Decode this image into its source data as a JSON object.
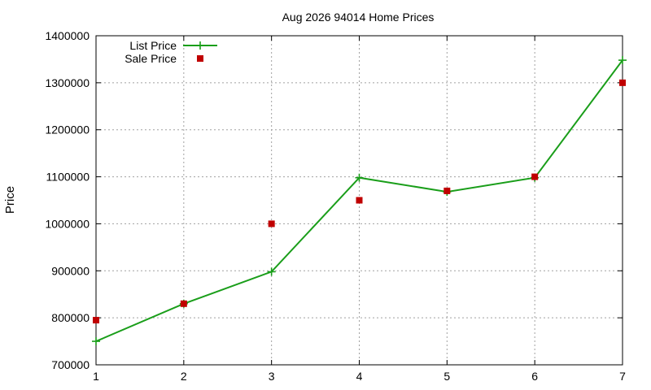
{
  "chart_data": {
    "type": "line",
    "title": "Aug 2026 94014 Home Prices",
    "xlabel": "",
    "ylabel": "Price",
    "xlim": [
      1,
      7
    ],
    "ylim": [
      700000,
      1400000
    ],
    "x_ticks": [
      1,
      2,
      3,
      4,
      5,
      6,
      7
    ],
    "y_ticks": [
      700000,
      800000,
      900000,
      1000000,
      1100000,
      1200000,
      1300000,
      1400000
    ],
    "grid": true,
    "legend_position": "top-left",
    "series": [
      {
        "name": "List Price",
        "style": "line-plus",
        "color": "#1a9e1a",
        "x": [
          1,
          2,
          3,
          4,
          5,
          6,
          7
        ],
        "y": [
          750000,
          830000,
          898000,
          1098000,
          1068000,
          1098000,
          1348000
        ]
      },
      {
        "name": "Sale Price",
        "style": "square",
        "color": "#c00000",
        "x": [
          1,
          2,
          3,
          4,
          5,
          6,
          7
        ],
        "y": [
          795000,
          830000,
          1000000,
          1050000,
          1070000,
          1100000,
          1300000
        ]
      }
    ]
  }
}
